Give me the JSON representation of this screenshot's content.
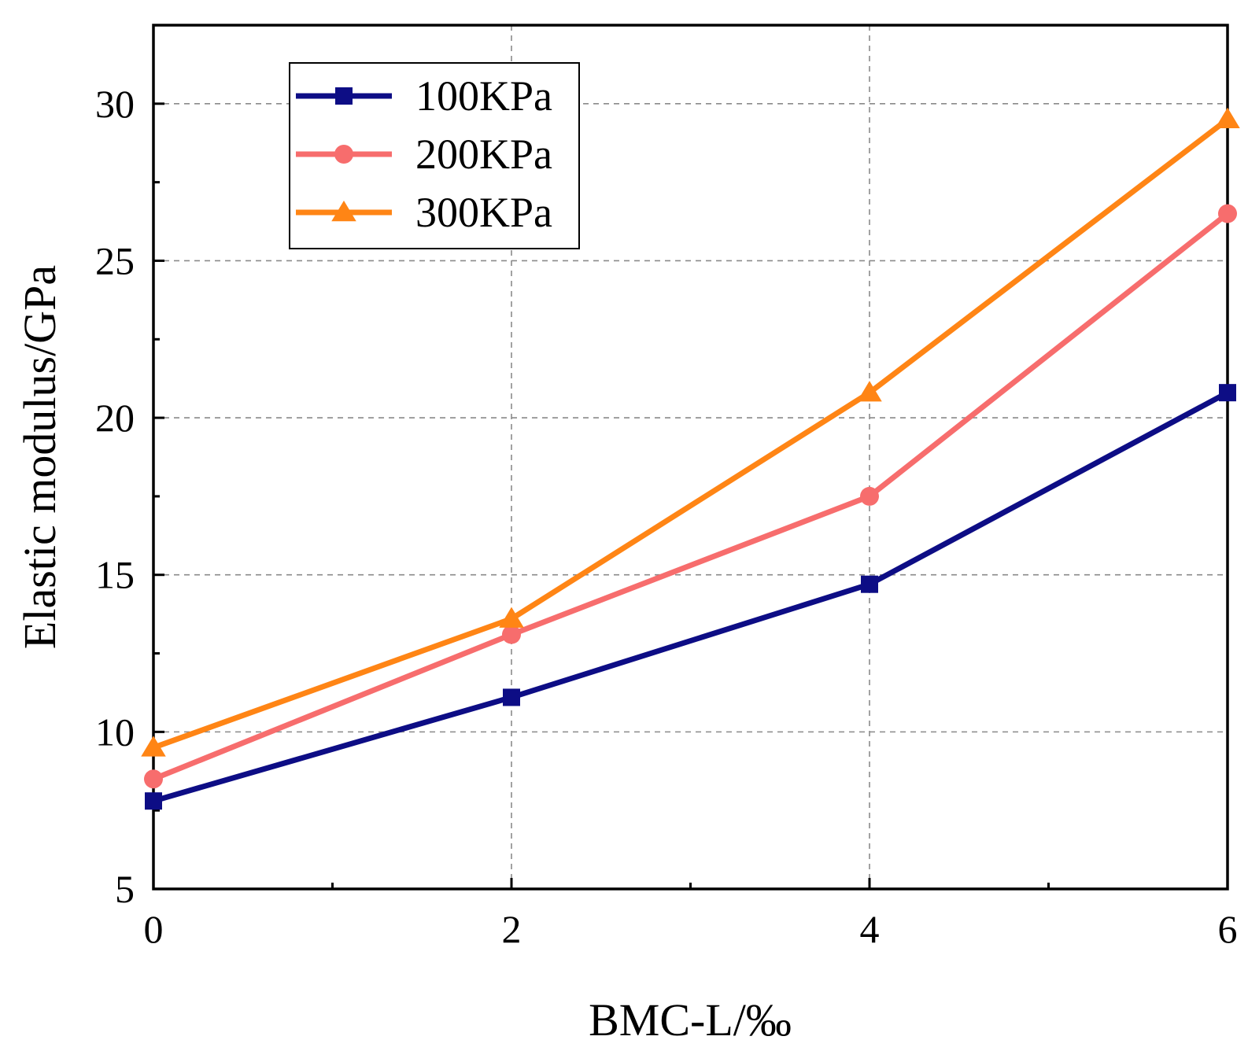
{
  "chart_data": {
    "type": "line",
    "title": "",
    "xlabel": "BMC-L/‰",
    "ylabel": "Elastic modulus/GPa",
    "x": [
      0,
      2,
      4,
      6
    ],
    "xlim": [
      0,
      6
    ],
    "ylim": [
      5,
      32.5
    ],
    "xticks": [
      0,
      2,
      4,
      6
    ],
    "xticks_minor": [
      1,
      3,
      5
    ],
    "yticks": [
      5,
      10,
      15,
      20,
      25,
      30
    ],
    "yticks_minor": [
      7.5,
      12.5,
      17.5,
      22.5,
      27.5,
      32.5
    ],
    "xtick_labels": [
      "0",
      "2",
      "4",
      "6"
    ],
    "ytick_labels": [
      "5",
      "10",
      "15",
      "20",
      "25",
      "30"
    ],
    "grid": true,
    "legend_position": "top-left",
    "series": [
      {
        "name": "100KPa",
        "values": [
          7.8,
          11.1,
          14.7,
          20.8
        ],
        "color": "#0d0d85",
        "marker": "square"
      },
      {
        "name": "200KPa",
        "values": [
          8.5,
          13.1,
          17.5,
          26.5
        ],
        "color": "#f76d6d",
        "marker": "circle"
      },
      {
        "name": "300KPa",
        "values": [
          9.5,
          13.6,
          20.8,
          29.5
        ],
        "color": "#ff8515",
        "marker": "triangle"
      }
    ]
  }
}
